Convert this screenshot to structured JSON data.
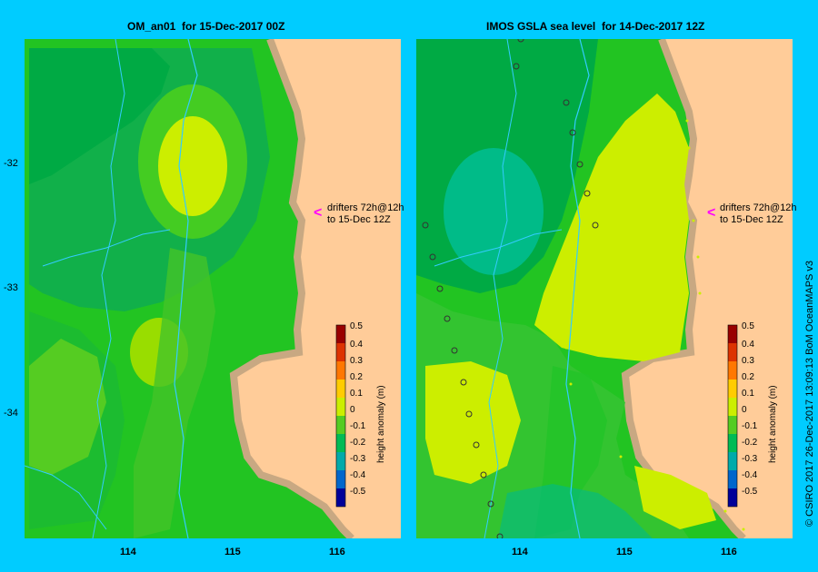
{
  "left_panel": {
    "title": "OM_an01  for 15-Dec-2017 00Z",
    "drifter_note_line1": "drifters 72h@12h",
    "drifter_note_line2": "to 15-Dec 12Z",
    "colorbar_title": "height anomaly (m)"
  },
  "right_panel": {
    "title": "IMOS GSLA sea level  for 14-Dec-2017 12Z",
    "drifter_note_line1": "drifters 72h@12h",
    "drifter_note_line2": "to 15-Dec 12Z",
    "colorbar_title": "height anomaly (m)"
  },
  "lat_ticks": [
    "-32",
    "-33",
    "-34"
  ],
  "lon_ticks": [
    "114",
    "115",
    "116"
  ],
  "colorbar_ticks": [
    "0.5",
    "0.4",
    "0.3",
    "0.2",
    "0.1",
    "0",
    "-0.1",
    "-0.2",
    "-0.3",
    "-0.4",
    "-0.5"
  ],
  "colors": {
    "background": "#00ccff",
    "land": "#ffcc99",
    "coast": "#c8a882",
    "level_0": "#00cc33",
    "level_0_1": "#66cc11",
    "level_0_2": "#ccee00",
    "level_neg_0_1": "#11bb55",
    "level_neg_0_2": "#00bb88",
    "drifter_arrow": "#ff00ff"
  },
  "credit": "© CSIRO 2017   26-Dec-2017 13:09:13 BoM OceanMAPS v3"
}
